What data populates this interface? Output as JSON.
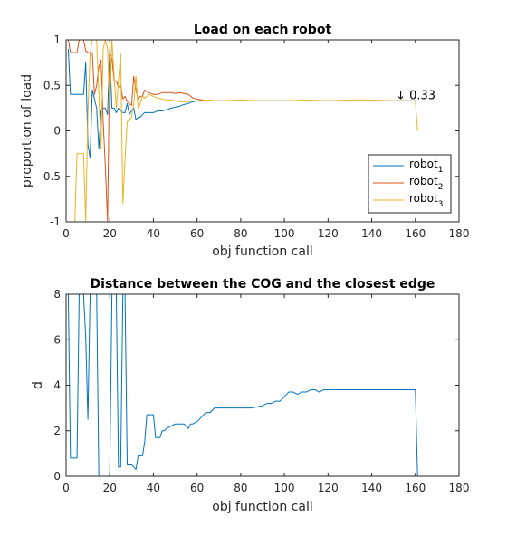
{
  "chart_data": [
    {
      "type": "line",
      "title": "Load on each robot",
      "xlabel": "obj function call",
      "ylabel": "proportion of load",
      "xlim": [
        0,
        180
      ],
      "ylim": [
        -1,
        1
      ],
      "xticks": [
        0,
        20,
        40,
        60,
        80,
        100,
        120,
        140,
        160,
        180
      ],
      "yticks": [
        -1,
        -0.5,
        0,
        0.5,
        1
      ],
      "ytick_labels": [
        "-1",
        "-0.5",
        "0",
        "0.5",
        "1"
      ],
      "legend": "bottom-right",
      "grid": false,
      "annotation": {
        "text": "↓ 0.33",
        "x": 151,
        "y": 0.35
      },
      "series": [
        {
          "name": "robot1",
          "name_base": "robot",
          "name_sub": "1",
          "color": "#0072BD",
          "x": [
            1,
            2,
            3,
            4,
            5,
            6,
            7,
            8,
            9,
            10,
            11,
            12,
            13,
            14,
            15,
            16,
            17,
            18,
            19,
            20,
            21,
            22,
            23,
            24,
            25,
            26,
            27,
            28,
            29,
            30,
            31,
            32,
            33,
            34,
            35,
            36,
            38,
            40,
            42,
            44,
            46,
            48,
            50,
            52,
            54,
            56,
            58,
            60,
            65,
            70,
            80,
            90,
            100,
            110,
            120,
            130,
            140,
            150,
            160
          ],
          "y": [
            0.9,
            0.4,
            0.4,
            0.4,
            0.4,
            0.4,
            0.4,
            0.4,
            0.75,
            -0.15,
            -0.3,
            0.45,
            0.35,
            0.25,
            -0.2,
            0.22,
            0.25,
            0.25,
            0.18,
            0.9,
            0.25,
            0.25,
            0.2,
            0.25,
            0.22,
            0.2,
            0.2,
            0.3,
            0.18,
            0.22,
            0.25,
            0.12,
            0.15,
            0.15,
            0.18,
            0.2,
            0.2,
            0.2,
            0.22,
            0.22,
            0.23,
            0.25,
            0.26,
            0.27,
            0.29,
            0.3,
            0.32,
            0.33,
            0.33,
            0.33,
            0.33,
            0.33,
            0.33,
            0.33,
            0.33,
            0.33,
            0.33,
            0.33,
            0.33
          ]
        },
        {
          "name": "robot2",
          "name_base": "robot",
          "name_sub": "2",
          "color": "#D95319",
          "x": [
            1,
            2,
            3,
            4,
            5,
            6,
            7,
            8,
            9,
            10,
            11,
            12,
            13,
            14,
            15,
            16,
            17,
            18,
            19,
            20,
            21,
            22,
            23,
            24,
            25,
            26,
            27,
            28,
            29,
            30,
            31,
            32,
            33,
            34,
            35,
            36,
            38,
            40,
            42,
            44,
            46,
            48,
            50,
            52,
            54,
            56,
            58,
            60,
            65,
            70,
            80,
            90,
            100,
            110,
            120,
            130,
            140,
            150,
            160
          ],
          "y": [
            1,
            0.86,
            0.86,
            0.86,
            0.86,
            1,
            1,
            1,
            0.88,
            0.86,
            0.86,
            0.86,
            0.4,
            0.5,
            0.7,
            0.78,
            0.1,
            -0.4,
            -1,
            0.85,
            0.8,
            0.55,
            0.55,
            0.48,
            0.5,
            0.35,
            0.38,
            0.32,
            0.3,
            0.28,
            0.6,
            0.45,
            0.35,
            0.38,
            0.38,
            0.45,
            0.42,
            0.4,
            0.4,
            0.42,
            0.42,
            0.42,
            0.41,
            0.42,
            0.41,
            0.4,
            0.36,
            0.35,
            0.33,
            0.33,
            0.33,
            0.33,
            0.33,
            0.33,
            0.33,
            0.33,
            0.33,
            0.33,
            0.33
          ]
        },
        {
          "name": "robot3",
          "name_base": "robot",
          "name_sub": "3",
          "color": "#EDB120",
          "x": [
            1,
            2,
            3,
            4,
            5,
            6,
            7,
            8,
            9,
            10,
            11,
            12,
            13,
            14,
            15,
            16,
            17,
            18,
            19,
            20,
            21,
            22,
            23,
            24,
            25,
            26,
            27,
            28,
            29,
            30,
            31,
            32,
            33,
            34,
            35,
            36,
            38,
            40,
            42,
            44,
            46,
            48,
            50,
            52,
            54,
            56,
            58,
            60,
            65,
            70,
            80,
            90,
            100,
            110,
            120,
            130,
            140,
            150,
            160,
            161
          ],
          "y": [
            -1,
            -1,
            -1,
            -1,
            -0.25,
            -0.25,
            -0.25,
            -0.25,
            -1,
            0.2,
            0.85,
            1,
            1,
            1,
            0.4,
            -0.2,
            0.9,
            1,
            0.9,
            0.25,
            1,
            0.6,
            0.25,
            0.55,
            0.85,
            -0.8,
            -0.3,
            0.1,
            0.12,
            0.15,
            0.3,
            0.6,
            0.25,
            0.3,
            0.38,
            0.36,
            0.4,
            0.38,
            0.36,
            0.35,
            0.34,
            0.34,
            0.33,
            0.32,
            0.32,
            0.32,
            0.33,
            0.33,
            0.34,
            0.33,
            0.34,
            0.33,
            0.33,
            0.34,
            0.33,
            0.34,
            0.34,
            0.33,
            0.33,
            0.0
          ]
        }
      ]
    },
    {
      "type": "line",
      "title": "Distance between the COG and the closest edge",
      "xlabel": "obj function call",
      "ylabel": "d",
      "xlim": [
        0,
        180
      ],
      "ylim": [
        0,
        8
      ],
      "xticks": [
        0,
        20,
        40,
        60,
        80,
        100,
        120,
        140,
        160,
        180
      ],
      "yticks": [
        0,
        2,
        4,
        6,
        8
      ],
      "ytick_labels": [
        "0",
        "2",
        "4",
        "6",
        "8"
      ],
      "grid": false,
      "series": [
        {
          "color": "#0072BD",
          "x": [
            1,
            2,
            3,
            4,
            5,
            6,
            7,
            8,
            9,
            10,
            11,
            12,
            13,
            14,
            15,
            16,
            17,
            18,
            19,
            20,
            21,
            22,
            23,
            24,
            25,
            26,
            27,
            28,
            29,
            30,
            31,
            32,
            33,
            34,
            35,
            36,
            37,
            38,
            39,
            40,
            41,
            42,
            43,
            44,
            45,
            46,
            48,
            50,
            52,
            54,
            56,
            57,
            58,
            60,
            62,
            64,
            66,
            68,
            70,
            75,
            80,
            85,
            90,
            92,
            94,
            96,
            98,
            100,
            102,
            104,
            106,
            108,
            110,
            112,
            114,
            116,
            118,
            120,
            125,
            130,
            140,
            150,
            160,
            161
          ],
          "y": [
            8,
            0.8,
            0.8,
            0.8,
            0.8,
            8,
            8,
            8,
            6.1,
            2.5,
            8,
            8,
            8,
            8,
            0,
            0,
            0,
            0,
            0,
            0,
            8,
            8,
            8,
            0.4,
            0.4,
            8,
            8,
            0.5,
            0.5,
            0.5,
            0.4,
            0.3,
            0.9,
            0.9,
            0.9,
            1.5,
            2.7,
            2.7,
            2.7,
            2.7,
            1.7,
            1.7,
            1.7,
            2.0,
            2.0,
            2.1,
            2.2,
            2.3,
            2.3,
            2.3,
            2.1,
            2.3,
            2.3,
            2.4,
            2.6,
            2.8,
            2.8,
            3.0,
            3.0,
            3.0,
            3.0,
            3.0,
            3.1,
            3.2,
            3.2,
            3.3,
            3.3,
            3.5,
            3.7,
            3.7,
            3.6,
            3.7,
            3.7,
            3.8,
            3.8,
            3.7,
            3.8,
            3.8,
            3.8,
            3.8,
            3.8,
            3.8,
            3.8,
            0
          ]
        }
      ]
    }
  ]
}
